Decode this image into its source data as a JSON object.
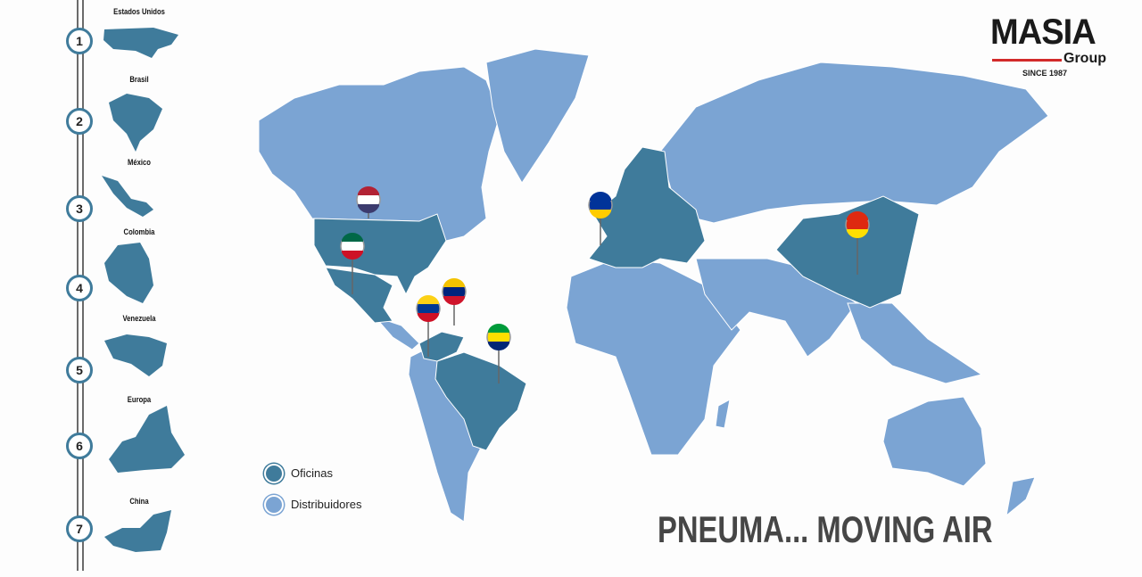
{
  "brand": {
    "name": "MASIA",
    "sub": "Group",
    "since": "SINCE 1987",
    "accent": "#d22a2a"
  },
  "colors": {
    "offices": "#3f7b9b",
    "distributors": "#7ba4d3"
  },
  "timeline": [
    {
      "num": "1",
      "label": "Estados Unidos"
    },
    {
      "num": "2",
      "label": "Brasil"
    },
    {
      "num": "3",
      "label": "México"
    },
    {
      "num": "4",
      "label": "Colombia"
    },
    {
      "num": "5",
      "label": "Venezuela"
    },
    {
      "num": "6",
      "label": "Europa"
    },
    {
      "num": "7",
      "label": "China"
    }
  ],
  "legend": {
    "offices": "Oficinas",
    "distributors": "Distribuidores"
  },
  "pins": [
    "usa-flag",
    "mexico-flag",
    "venezuela-flag",
    "colombia-flag",
    "brazil-flag",
    "eu-flag",
    "china-flag"
  ],
  "slogan": "PNEUMA... MOVING AIR"
}
